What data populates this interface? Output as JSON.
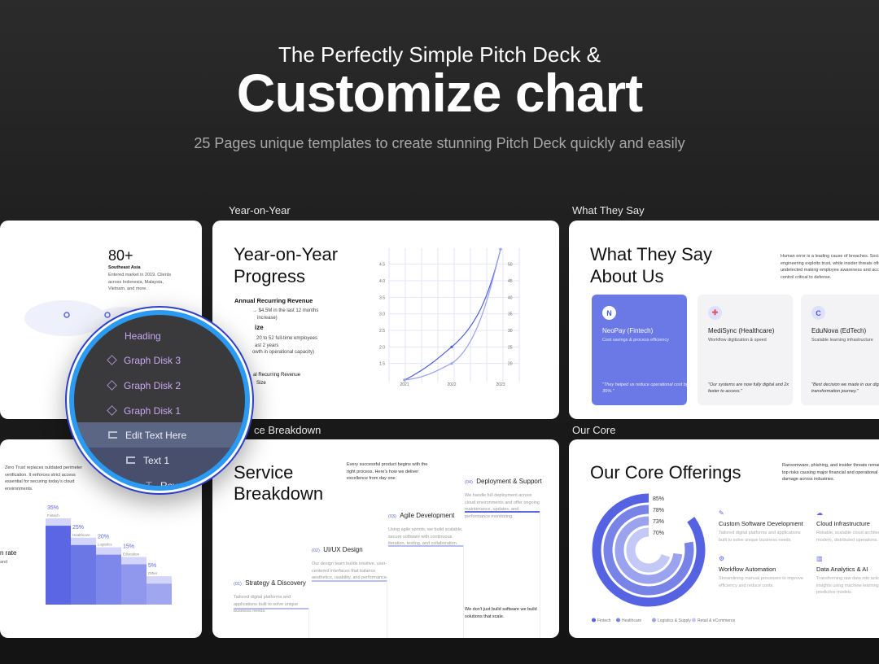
{
  "header": {
    "line1": "The Perfectly Simple Pitch Deck &",
    "title": "Customize chart",
    "subtitle": "25 Pages unique templates to create stunning Pitch Deck quickly and easily"
  },
  "sections": {
    "yoy": "Year-on-Year",
    "say": "What They Say",
    "service": "ce Breakdown",
    "core": "Our Core"
  },
  "card_market": {
    "stat": "80+",
    "region": "Southeast Asia",
    "desc": "Entered market in 2019. Clients across Indonesia, Malaysia, Vietnam, and more."
  },
  "card_yoy": {
    "title_1": "Year-on-Year",
    "title_2": "Progress",
    "h_arr": "Annual Recurring Revenue",
    "l1": "→ $4.5M in the last 12 months",
    "l2": "increase)",
    "h_size": "ize",
    "l3": "20 to 52 full-time employees",
    "l4": "ast 2 years",
    "l5": "owth in operational capacity)",
    "l6": "al Recurring Revenue",
    "l7": "Size"
  },
  "card_say": {
    "title_1": "What They Say",
    "title_2": "About Us",
    "desc": "Human error is a leading cause of breaches. Social engineering exploits trust, while insider threats often go undetected making employee awareness and access control critical to defense.",
    "testimonials": [
      {
        "name": "NeoPay (Fintech)",
        "desc": "Cost savings & process efficiency",
        "quote": "\"They helped us reduce operational cost by 35%.\"",
        "logo": "N"
      },
      {
        "name": "MediSync (Healthcare)",
        "desc": "Workflow digitization & speed",
        "quote": "\"Our systems are now fully digital and 2x faster to access.\"",
        "logo": "✚"
      },
      {
        "name": "EduNova (EdTech)",
        "desc": "Scalable learning infrastructure",
        "quote": "\"Best decision we made in our digital transformation journey.\"",
        "logo": "C"
      }
    ]
  },
  "card_zero": {
    "desc": "Zero Trust replaces outdated perimeter verification. It enforces strict access essential for securing today's cloud environments.",
    "left_title": "n rate",
    "left_desc": "and"
  },
  "card_service": {
    "title_1": "Service",
    "title_2": "Breakdown",
    "intro": "Every successful product begins with the right process. Here's how we deliver excellence from day one.",
    "steps": [
      {
        "num": "(01)",
        "title": "Strategy & Discovery",
        "body": "Tailored digital platforms and applications built to solve unique business needs."
      },
      {
        "num": "(02)",
        "title": "UI/UX Design",
        "body": "Our design team builds intuitive, user-centered interfaces that balance aesthetics, usability, and performance."
      },
      {
        "num": "(03)",
        "title": "Agile Development",
        "body": "Using agile sprints, we build scalable, secure software with continuous iteration, testing, and collaboration."
      },
      {
        "num": "(04)",
        "title": "Deployment & Support",
        "body": "We handle full deployment across cloud environments and offer ongoing maintenance, updates, and performance monitoring."
      }
    ],
    "footer": "We don't just build software we build solutions that scale."
  },
  "card_core": {
    "title": "Our Core Offerings",
    "desc": "Ransomware, phishing, and insider threats remain top risks causing major financial and operational damage across industries.",
    "offerings": [
      {
        "icon": "wrench-icon",
        "title": "Custom Software Development",
        "body": "Tailored digital platforms and applications built to solve unique business needs."
      },
      {
        "icon": "cloud-icon",
        "title": "Cloud Infrastructure",
        "body": "Reliable, scalable cloud architecture for modern, distributed operations."
      },
      {
        "icon": "gear-icon",
        "title": "Workflow Automation",
        "body": "Streamlining manual processes to improve efficiency and reduce costs."
      },
      {
        "icon": "bar-chart-icon",
        "title": "Data Analytics & AI",
        "body": "Transforming raw data into actionable insights using machine learning and predictive models."
      }
    ]
  },
  "magnifier": {
    "items": [
      {
        "label": "Heading",
        "icon": "none"
      },
      {
        "label": "Graph Disk 3",
        "icon": "diamond-icon"
      },
      {
        "label": "Graph Disk 2",
        "icon": "diamond-icon"
      },
      {
        "label": "Graph Disk 1",
        "icon": "diamond-icon"
      },
      {
        "label": "Edit Text Here",
        "icon": "frame-icon",
        "selected": true
      },
      {
        "label": "Text 1",
        "icon": "frame-icon"
      },
      {
        "label": "Revenue and",
        "icon": "text-icon"
      }
    ]
  },
  "colors": {
    "accent": "#5b67e6",
    "highlight_ring": "#2b9af3",
    "layer_text": "#c7a8f0"
  },
  "chart_data": [
    {
      "type": "line",
      "x": [
        "2021",
        "2022",
        "2023"
      ],
      "yleft_ticks": [
        "1.5",
        "2.0",
        "2.5",
        "3.0",
        "3.5",
        "4.0",
        "4.5"
      ],
      "yright_ticks": [
        "20",
        "25",
        "30",
        "35",
        "40",
        "45",
        "50"
      ],
      "ylim": [
        1.0,
        4.95
      ],
      "grid": true,
      "series": [
        {
          "values": [
            1.0,
            2.0,
            4.95
          ],
          "color": "#4f5ce0"
        },
        {
          "values": [
            1.0,
            1.5,
            4.95
          ],
          "color": "#9aa2ee"
        }
      ]
    },
    {
      "type": "bar",
      "categories": [
        "Fintech",
        "Healthcare",
        "Logistics",
        "Education",
        "Other"
      ],
      "values": [
        35,
        25,
        20,
        15,
        5
      ],
      "labels": [
        "35%",
        "25%",
        "20%",
        "15%",
        "5%"
      ]
    },
    {
      "type": "radial-bar",
      "categories": [
        "Fintech",
        "Healthcare",
        "Logistics & Supply",
        "Retail & eCommerce"
      ],
      "values": [
        85,
        78,
        73,
        70
      ],
      "labels": [
        "85%",
        "78%",
        "73%",
        "70%"
      ],
      "colors": [
        "#5563e2",
        "#7883e8",
        "#9ba3ee",
        "#c3c8f6"
      ],
      "legend": "bottom"
    }
  ]
}
